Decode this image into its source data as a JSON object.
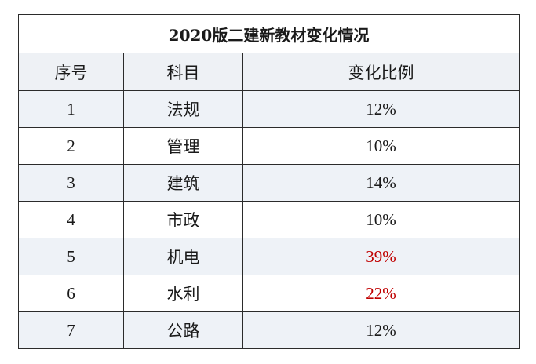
{
  "table": {
    "title": "2020版二建新教材变化情况",
    "headers": [
      "序号",
      "科目",
      "变化比例"
    ],
    "highlight_color": "#c00000",
    "normal_color": "#1a1a1a",
    "rows": [
      {
        "num": "1",
        "subject": "法规",
        "pct": "12%",
        "highlight": false
      },
      {
        "num": "2",
        "subject": "管理",
        "pct": "10%",
        "highlight": false
      },
      {
        "num": "3",
        "subject": "建筑",
        "pct": "14%",
        "highlight": false
      },
      {
        "num": "4",
        "subject": "市政",
        "pct": "10%",
        "highlight": false
      },
      {
        "num": "5",
        "subject": "机电",
        "pct": "39%",
        "highlight": true
      },
      {
        "num": "6",
        "subject": "水利",
        "pct": "22%",
        "highlight": true
      },
      {
        "num": "7",
        "subject": "公路",
        "pct": "12%",
        "highlight": false
      }
    ]
  }
}
